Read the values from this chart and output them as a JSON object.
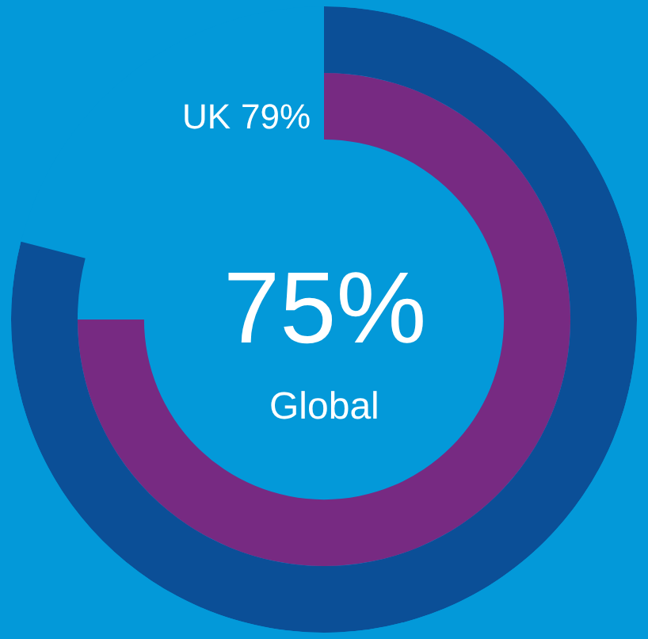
{
  "chart_data": {
    "type": "other",
    "categories": [
      "UK",
      "Global"
    ],
    "values": [
      79,
      75
    ],
    "colors": [
      "#0b4f97",
      "#772a82"
    ],
    "value_labels": [
      "79%",
      "75%"
    ]
  }
}
